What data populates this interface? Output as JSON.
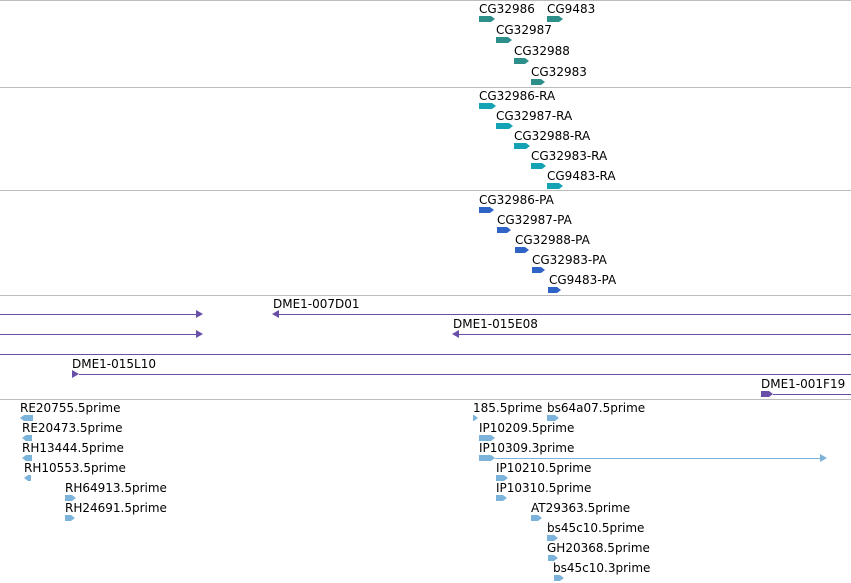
{
  "colors": {
    "gene": "#2e8f8a",
    "transcript": "#13a3b5",
    "protein": "#2f63c6",
    "clone": "#6a4fa8",
    "est": "#7cb3da"
  },
  "tracks": {
    "genes": [
      "CG32986",
      "CG9483",
      "CG32987",
      "CG32988",
      "CG32983"
    ],
    "transcripts": [
      "CG32986-RA",
      "CG32987-RA",
      "CG32988-RA",
      "CG32983-RA",
      "CG9483-RA"
    ],
    "proteins": [
      "CG32986-PA",
      "CG32987-PA",
      "CG32988-PA",
      "CG32983-PA",
      "CG9483-PA"
    ],
    "clones": [
      "DME1-007D01",
      "DME1-015E08",
      "DME1-015L10",
      "DME1-001F19"
    ],
    "ests": [
      "RE20755.5prime",
      "RE20473.5prime",
      "RH13444.5prime",
      "RH10553.5prime",
      "RH64913.5prime",
      "RH24691.5prime",
      "185.5prime",
      "bs64a07.5prime",
      "IP10209.5prime",
      "IP10309.3prime",
      "IP10210.5prime",
      "IP10310.5prime",
      "AT29363.5prime",
      "bs45c10.5prime",
      "GH20368.5prime",
      "bs45c10.3prime"
    ]
  }
}
